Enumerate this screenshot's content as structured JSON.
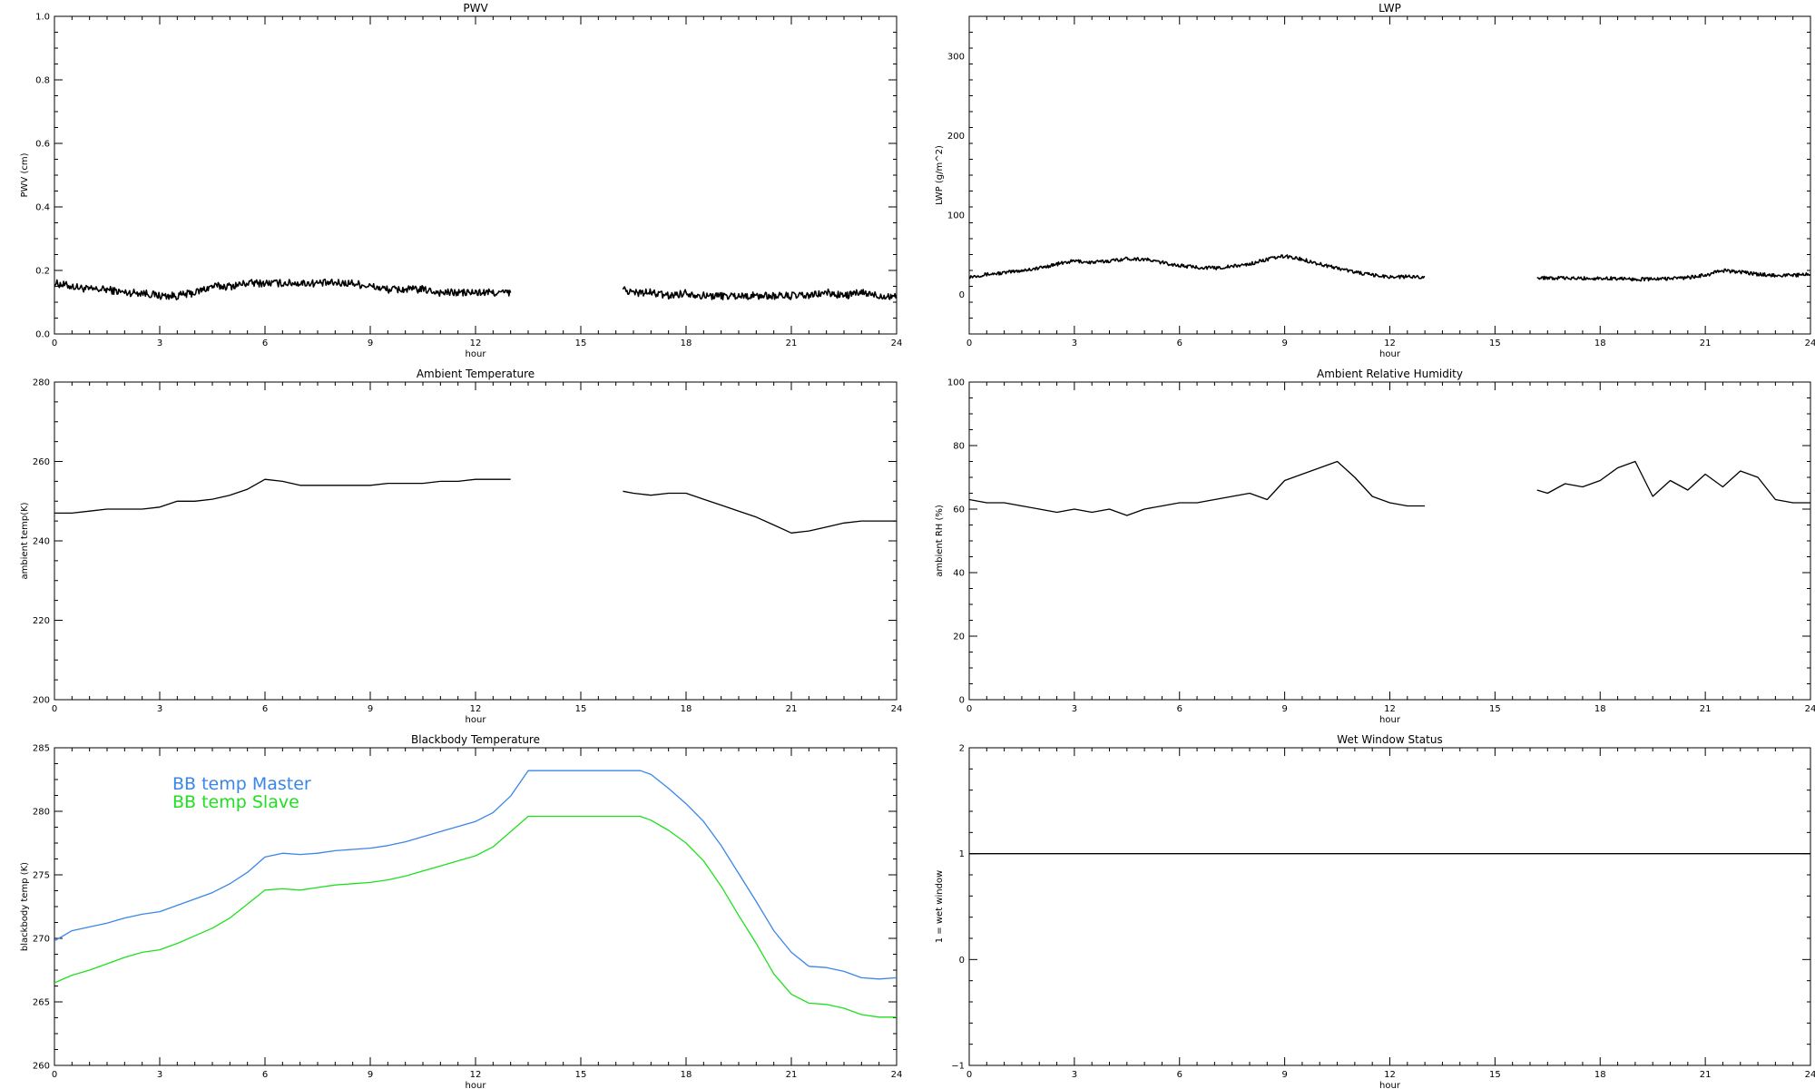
{
  "chart_data": [
    {
      "type": "line",
      "title": "PWV",
      "xlabel": "hour",
      "ylabel": "PWV (cm)",
      "xlim": [
        0,
        24
      ],
      "ylim": [
        0.0,
        1.0
      ],
      "xticks": [
        0,
        3,
        6,
        9,
        12,
        15,
        18,
        21,
        24
      ],
      "xtick_labels": [
        "0",
        "3",
        "6",
        "9",
        "12",
        "15",
        "18",
        "21",
        "24"
      ],
      "yticks": [
        0.0,
        0.2,
        0.4,
        0.6,
        0.8,
        1.0
      ],
      "ytick_labels": [
        "0.0",
        "0.2",
        "0.4",
        "0.6",
        "0.8",
        "1.0"
      ],
      "grid": false,
      "series": [
        {
          "color": "#000000",
          "style": "noisy",
          "noise": 0.012,
          "x": [
            0,
            0.5,
            1,
            1.5,
            2,
            2.5,
            3,
            3.5,
            4,
            4.5,
            5,
            5.5,
            6,
            6.5,
            7,
            7.5,
            8,
            8.5,
            9,
            9.5,
            10,
            10.5,
            11,
            11.5,
            12,
            12.5,
            13,
            null,
            16.2,
            16.5,
            17,
            17.5,
            18,
            18.5,
            19,
            19.5,
            20,
            20.5,
            21,
            21.5,
            22,
            22.5,
            23,
            23.5,
            24
          ],
          "y": [
            0.16,
            0.15,
            0.14,
            0.14,
            0.13,
            0.13,
            0.12,
            0.12,
            0.13,
            0.15,
            0.15,
            0.16,
            0.16,
            0.16,
            0.16,
            0.16,
            0.16,
            0.16,
            0.15,
            0.14,
            0.14,
            0.14,
            0.13,
            0.13,
            0.13,
            0.13,
            0.13,
            null,
            0.14,
            0.13,
            0.13,
            0.12,
            0.13,
            0.12,
            0.12,
            0.12,
            0.12,
            0.12,
            0.12,
            0.12,
            0.13,
            0.12,
            0.13,
            0.12,
            0.12
          ]
        }
      ]
    },
    {
      "type": "line",
      "title": "LWP",
      "xlabel": "hour",
      "ylabel": "LWP (g/m^2)",
      "xlim": [
        0,
        24
      ],
      "ylim": [
        -50,
        350
      ],
      "xticks": [
        0,
        3,
        6,
        9,
        12,
        15,
        18,
        21,
        24
      ],
      "xtick_labels": [
        "0",
        "3",
        "6",
        "9",
        "12",
        "15",
        "18",
        "21",
        "24"
      ],
      "yticks": [
        0,
        100,
        200,
        300
      ],
      "ytick_labels": [
        "0",
        "100",
        "200",
        "300"
      ],
      "grid": false,
      "series": [
        {
          "color": "#000000",
          "style": "noisy",
          "noise": 2.2,
          "x": [
            0,
            0.5,
            1,
            1.5,
            2,
            2.5,
            3,
            3.5,
            4,
            4.5,
            5,
            5.5,
            6,
            6.5,
            7,
            7.5,
            8,
            8.5,
            9,
            9.5,
            10,
            10.5,
            11,
            11.5,
            12,
            12.5,
            13,
            null,
            16.2,
            16.5,
            17,
            17.5,
            18,
            18.5,
            19,
            19.5,
            20,
            20.5,
            21,
            21.5,
            22,
            22.5,
            23,
            23.5,
            24
          ],
          "y": [
            22,
            25,
            27,
            30,
            33,
            38,
            42,
            40,
            42,
            45,
            44,
            40,
            36,
            34,
            33,
            35,
            38,
            44,
            48,
            44,
            38,
            33,
            28,
            24,
            22,
            22,
            22,
            null,
            20,
            21,
            20,
            20,
            20,
            20,
            19,
            19,
            20,
            21,
            24,
            30,
            28,
            25,
            24,
            24,
            25
          ]
        }
      ]
    },
    {
      "type": "line",
      "title": "Ambient Temperature",
      "xlabel": "hour",
      "ylabel": "ambient temp(K)",
      "xlim": [
        0,
        24
      ],
      "ylim": [
        200,
        280
      ],
      "xticks": [
        0,
        3,
        6,
        9,
        12,
        15,
        18,
        21,
        24
      ],
      "xtick_labels": [
        "0",
        "3",
        "6",
        "9",
        "12",
        "15",
        "18",
        "21",
        "24"
      ],
      "yticks": [
        200,
        220,
        240,
        260,
        280
      ],
      "ytick_labels": [
        "200",
        "220",
        "240",
        "260",
        "280"
      ],
      "grid": false,
      "series": [
        {
          "color": "#000000",
          "style": "line",
          "x": [
            0,
            0.5,
            1,
            1.5,
            2,
            2.5,
            3,
            3.5,
            4,
            4.5,
            5,
            5.5,
            6,
            6.5,
            7,
            7.5,
            8,
            8.5,
            9,
            9.5,
            10,
            10.5,
            11,
            11.5,
            12,
            12.5,
            13,
            null,
            16.2,
            16.5,
            17,
            17.5,
            18,
            18.5,
            19,
            19.5,
            20,
            20.5,
            21,
            21.5,
            22,
            22.5,
            23,
            23.5,
            24
          ],
          "y": [
            247,
            247,
            247.5,
            248,
            248,
            248,
            248.5,
            250,
            250,
            250.5,
            251.5,
            253,
            255.5,
            255,
            254,
            254,
            254,
            254,
            254,
            254.5,
            254.5,
            254.5,
            255,
            255,
            255.5,
            255.5,
            255.5,
            null,
            252.5,
            252,
            251.5,
            252,
            252,
            250.5,
            249,
            247.5,
            246,
            244,
            242,
            242.5,
            243.5,
            244.5,
            245,
            245,
            245
          ]
        }
      ]
    },
    {
      "type": "line",
      "title": "Ambient Relative Humidity",
      "xlabel": "hour",
      "ylabel": "ambient RH (%)",
      "xlim": [
        0,
        24
      ],
      "ylim": [
        0,
        100
      ],
      "xticks": [
        0,
        3,
        6,
        9,
        12,
        15,
        18,
        21,
        24
      ],
      "xtick_labels": [
        "0",
        "3",
        "6",
        "9",
        "12",
        "15",
        "18",
        "21",
        "24"
      ],
      "yticks": [
        0,
        20,
        40,
        60,
        80,
        100
      ],
      "ytick_labels": [
        "0",
        "20",
        "40",
        "60",
        "80",
        "100"
      ],
      "grid": false,
      "series": [
        {
          "color": "#000000",
          "style": "line",
          "x": [
            0,
            0.5,
            1,
            1.5,
            2,
            2.5,
            3,
            3.5,
            4,
            4.5,
            5,
            5.5,
            6,
            6.5,
            7,
            7.5,
            8,
            8.5,
            9,
            9.5,
            10,
            10.5,
            11,
            11.5,
            12,
            12.5,
            13,
            null,
            16.2,
            16.5,
            17,
            17.5,
            18,
            18.5,
            19,
            19.5,
            20,
            20.5,
            21,
            21.5,
            22,
            22.5,
            23,
            23.5,
            24
          ],
          "y": [
            63,
            62,
            62,
            61,
            60,
            59,
            60,
            59,
            60,
            58,
            60,
            61,
            62,
            62,
            63,
            64,
            65,
            63,
            69,
            71,
            73,
            75,
            70,
            64,
            62,
            61,
            61,
            null,
            66,
            65,
            68,
            67,
            69,
            73,
            75,
            64,
            69,
            66,
            71,
            67,
            72,
            70,
            63,
            62,
            62
          ]
        }
      ]
    },
    {
      "type": "line",
      "title": "Blackbody Temperature",
      "xlabel": "hour",
      "ylabel": "blackbody temp (K)",
      "xlim": [
        0,
        24
      ],
      "ylim": [
        260,
        285
      ],
      "xticks": [
        0,
        3,
        6,
        9,
        12,
        15,
        18,
        21,
        24
      ],
      "xtick_labels": [
        "0",
        "3",
        "6",
        "9",
        "12",
        "15",
        "18",
        "21",
        "24"
      ],
      "yticks": [
        260,
        265,
        270,
        275,
        280,
        285
      ],
      "ytick_labels": [
        "260",
        "265",
        "270",
        "275",
        "280",
        "285"
      ],
      "grid": false,
      "legend": "top-left",
      "series": [
        {
          "name": "BB temp Master",
          "color": "#3a86e8",
          "style": "line",
          "x": [
            0,
            0.5,
            1,
            1.5,
            2,
            2.5,
            3,
            3.5,
            4,
            4.5,
            5,
            5.5,
            6,
            6.5,
            7,
            7.5,
            8,
            8.5,
            9,
            9.5,
            10,
            10.5,
            11,
            11.5,
            12,
            12.5,
            13,
            13.5,
            14,
            15,
            16,
            16.7,
            17,
            17.5,
            18,
            18.5,
            19,
            19.5,
            20,
            20.5,
            21,
            21.5,
            22,
            22.5,
            23,
            23.5,
            24
          ],
          "y": [
            269.8,
            270.6,
            270.9,
            271.2,
            271.6,
            271.9,
            272.1,
            272.6,
            273.1,
            273.6,
            274.3,
            275.2,
            276.4,
            276.7,
            276.6,
            276.7,
            276.9,
            277.0,
            277.1,
            277.3,
            277.6,
            278.0,
            278.4,
            278.8,
            279.2,
            279.9,
            281.2,
            283.2,
            283.2,
            283.2,
            283.2,
            283.2,
            282.9,
            281.8,
            280.6,
            279.2,
            277.3,
            275.1,
            272.9,
            270.6,
            268.9,
            267.8,
            267.7,
            267.4,
            266.9,
            266.8,
            266.9
          ]
        },
        {
          "name": "BB temp Slave",
          "color": "#1fe01f",
          "style": "line",
          "x": [
            0,
            0.5,
            1,
            1.5,
            2,
            2.5,
            3,
            3.5,
            4,
            4.5,
            5,
            5.5,
            6,
            6.5,
            7,
            7.5,
            8,
            8.5,
            9,
            9.5,
            10,
            10.5,
            11,
            11.5,
            12,
            12.5,
            13,
            13.5,
            14,
            15,
            16,
            16.7,
            17,
            17.5,
            18,
            18.5,
            19,
            19.5,
            20,
            20.5,
            21,
            21.5,
            22,
            22.5,
            23,
            23.5,
            24
          ],
          "y": [
            266.5,
            267.1,
            267.5,
            268.0,
            268.5,
            268.9,
            269.1,
            269.6,
            270.2,
            270.8,
            271.6,
            272.7,
            273.8,
            273.9,
            273.8,
            274.0,
            274.2,
            274.3,
            274.4,
            274.6,
            274.9,
            275.3,
            275.7,
            276.1,
            276.5,
            277.2,
            278.4,
            279.6,
            279.6,
            279.6,
            279.6,
            279.6,
            279.3,
            278.5,
            277.5,
            276.1,
            274.1,
            271.8,
            269.6,
            267.2,
            265.6,
            264.9,
            264.8,
            264.5,
            264.0,
            263.8,
            263.8
          ]
        }
      ]
    },
    {
      "type": "line",
      "title": "Wet Window Status",
      "xlabel": "hour",
      "ylabel": "1 = wet window",
      "xlim": [
        0,
        24
      ],
      "ylim": [
        -1,
        2
      ],
      "xticks": [
        0,
        3,
        6,
        9,
        12,
        15,
        18,
        21,
        24
      ],
      "xtick_labels": [
        "0",
        "3",
        "6",
        "9",
        "12",
        "15",
        "18",
        "21",
        "24"
      ],
      "yticks": [
        -1,
        0,
        1,
        2
      ],
      "ytick_labels": [
        "−1",
        "0",
        "1",
        "2"
      ],
      "grid": false,
      "series": [
        {
          "color": "#000000",
          "style": "line",
          "x": [
            0,
            24
          ],
          "y": [
            1,
            1
          ]
        }
      ]
    }
  ]
}
